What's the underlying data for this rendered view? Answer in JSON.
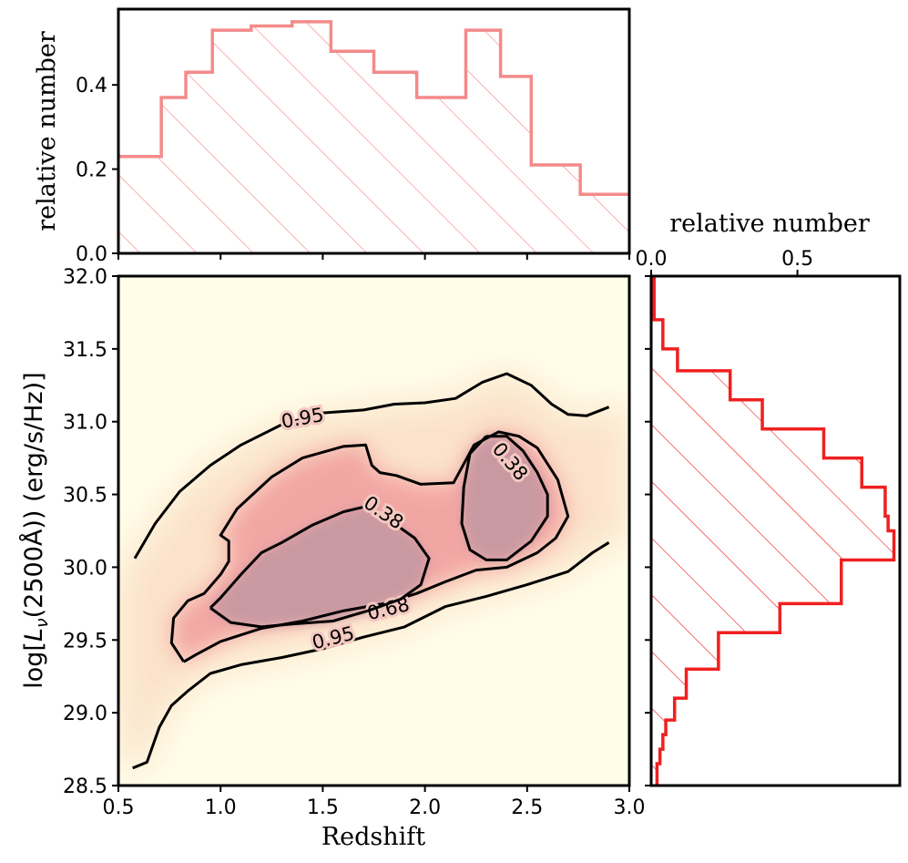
{
  "chart_data": [
    {
      "panel": "top-histogram",
      "type": "bar",
      "xlabel": "",
      "ylabel": "relative number",
      "xlim": [
        0.5,
        3.0
      ],
      "ylim": [
        0.0,
        0.58
      ],
      "yticks": [
        0.0,
        0.2,
        0.4
      ],
      "ytick_labels": [
        "0.0",
        "0.2",
        "0.4"
      ],
      "style": "step, hatched",
      "color": "#f48a8a",
      "bin_edges": [
        0.5,
        0.71,
        0.83,
        0.96,
        1.15,
        1.35,
        1.54,
        1.75,
        1.96,
        2.06,
        2.2,
        2.37,
        2.52,
        2.64,
        2.76,
        3.0
      ],
      "values": [
        0.23,
        0.37,
        0.43,
        0.53,
        0.54,
        0.55,
        0.48,
        0.43,
        0.37,
        0.37,
        0.53,
        0.42,
        0.21,
        0.21,
        0.14
      ]
    },
    {
      "panel": "main-density",
      "type": "heatmap",
      "xlabel": "Redshift",
      "ylabel": "log[L_ν(2500Å)) (erg/s/Hz)]",
      "xlim": [
        0.5,
        3.0
      ],
      "ylim": [
        28.5,
        32.0
      ],
      "xticks": [
        0.5,
        1.0,
        1.5,
        2.0,
        2.5,
        3.0
      ],
      "xtick_labels": [
        "0.5",
        "1.0",
        "1.5",
        "2.0",
        "2.5",
        "3.0"
      ],
      "yticks": [
        28.5,
        29.0,
        29.5,
        30.0,
        30.5,
        31.0,
        31.5,
        32.0
      ],
      "ytick_labels": [
        "28.5",
        "29.0",
        "29.5",
        "30.0",
        "30.5",
        "31.0",
        "31.5",
        "32.0"
      ],
      "background_color": "#fffde8",
      "density_color": "#c999a2",
      "contours": [
        {
          "level": "0.95",
          "points": [
            [
              0.58,
              30.06
            ],
            [
              0.68,
              30.3
            ],
            [
              0.8,
              30.52
            ],
            [
              0.95,
              30.7
            ],
            [
              1.1,
              30.84
            ],
            [
              1.3,
              30.98
            ],
            [
              1.5,
              31.06
            ],
            [
              1.7,
              31.08
            ],
            [
              1.85,
              31.12
            ],
            [
              2.0,
              31.13
            ],
            [
              2.15,
              31.16
            ],
            [
              2.28,
              31.27
            ],
            [
              2.4,
              31.33
            ],
            [
              2.52,
              31.25
            ],
            [
              2.62,
              31.12
            ],
            [
              2.7,
              31.05
            ],
            [
              2.79,
              31.04
            ],
            [
              2.9,
              31.1
            ]
          ],
          "labels": [
            {
              "text": "0.95",
              "x": 1.4,
              "y": 31.03
            }
          ]
        },
        {
          "level": "0.95",
          "points": [
            [
              0.57,
              28.62
            ],
            [
              0.64,
              28.66
            ],
            [
              0.7,
              28.9
            ],
            [
              0.76,
              29.05
            ],
            [
              0.84,
              29.15
            ],
            [
              0.95,
              29.27
            ],
            [
              1.1,
              29.33
            ],
            [
              1.3,
              29.38
            ],
            [
              1.5,
              29.44
            ],
            [
              1.7,
              29.52
            ],
            [
              1.9,
              29.59
            ],
            [
              2.1,
              29.73
            ],
            [
              2.3,
              29.8
            ],
            [
              2.5,
              29.88
            ],
            [
              2.7,
              29.97
            ],
            [
              2.82,
              30.1
            ],
            [
              2.9,
              30.17
            ]
          ],
          "labels": [
            {
              "text": "0.95",
              "x": 1.55,
              "y": 29.52
            }
          ]
        },
        {
          "level": "0.68",
          "points": [
            [
              0.82,
              29.35
            ],
            [
              0.76,
              29.48
            ],
            [
              0.77,
              29.65
            ],
            [
              0.84,
              29.77
            ],
            [
              0.92,
              29.82
            ],
            [
              1.0,
              29.95
            ],
            [
              1.04,
              30.04
            ],
            [
              1.04,
              30.18
            ],
            [
              1.0,
              30.22
            ],
            [
              1.08,
              30.4
            ],
            [
              1.25,
              30.62
            ],
            [
              1.4,
              30.75
            ],
            [
              1.6,
              30.83
            ],
            [
              1.71,
              30.84
            ],
            [
              1.74,
              30.7
            ],
            [
              1.78,
              30.65
            ],
            [
              1.86,
              30.63
            ],
            [
              1.98,
              30.57
            ],
            [
              2.14,
              30.58
            ],
            [
              2.24,
              30.84
            ],
            [
              2.36,
              30.93
            ],
            [
              2.46,
              30.9
            ],
            [
              2.55,
              30.82
            ],
            [
              2.65,
              30.6
            ],
            [
              2.7,
              30.35
            ],
            [
              2.64,
              30.2
            ],
            [
              2.55,
              30.1
            ],
            [
              2.4,
              30.0
            ],
            [
              2.25,
              29.98
            ],
            [
              2.1,
              29.9
            ],
            [
              1.96,
              29.82
            ],
            [
              1.8,
              29.75
            ],
            [
              1.6,
              29.7
            ],
            [
              1.4,
              29.63
            ],
            [
              1.2,
              29.58
            ],
            [
              1.0,
              29.49
            ],
            [
              0.88,
              29.4
            ],
            [
              0.82,
              29.35
            ]
          ],
          "labels": [
            {
              "text": "0.68",
              "x": 1.82,
              "y": 29.72
            }
          ]
        },
        {
          "level": "0.38",
          "points": [
            [
              0.95,
              29.72
            ],
            [
              1.05,
              29.62
            ],
            [
              1.2,
              29.59
            ],
            [
              1.35,
              29.61
            ],
            [
              1.55,
              29.63
            ],
            [
              1.72,
              29.7
            ],
            [
              1.88,
              29.78
            ],
            [
              1.98,
              29.88
            ],
            [
              2.02,
              30.06
            ],
            [
              1.95,
              30.2
            ],
            [
              1.85,
              30.3
            ],
            [
              1.72,
              30.42
            ],
            [
              1.6,
              30.38
            ],
            [
              1.45,
              30.29
            ],
            [
              1.3,
              30.17
            ],
            [
              1.2,
              30.1
            ],
            [
              1.1,
              29.95
            ],
            [
              1.0,
              29.79
            ],
            [
              0.95,
              29.72
            ]
          ],
          "labels": [
            {
              "text": "0.38",
              "x": 1.8,
              "y": 30.38
            }
          ]
        },
        {
          "level": "0.38",
          "points": [
            [
              2.3,
              30.9
            ],
            [
              2.4,
              30.9
            ],
            [
              2.48,
              30.8
            ],
            [
              2.55,
              30.65
            ],
            [
              2.6,
              30.5
            ],
            [
              2.6,
              30.35
            ],
            [
              2.52,
              30.18
            ],
            [
              2.4,
              30.05
            ],
            [
              2.3,
              30.05
            ],
            [
              2.22,
              30.12
            ],
            [
              2.18,
              30.3
            ],
            [
              2.19,
              30.55
            ],
            [
              2.22,
              30.78
            ],
            [
              2.3,
              30.9
            ]
          ],
          "labels": [
            {
              "text": "0.38",
              "x": 2.42,
              "y": 30.73
            }
          ]
        }
      ]
    },
    {
      "panel": "right-histogram",
      "type": "bar",
      "orientation": "horizontal",
      "xlabel": "relative number",
      "xlim": [
        0.0,
        0.85
      ],
      "xticks": [
        0.0,
        0.5
      ],
      "xtick_labels": [
        "0.0",
        "0.5"
      ],
      "ylim": [
        28.5,
        32.0
      ],
      "style": "step, hatched",
      "color": "#ef2020",
      "bin_edges": [
        28.5,
        28.65,
        28.75,
        28.85,
        28.95,
        29.1,
        29.3,
        29.55,
        29.75,
        30.05,
        30.25,
        30.35,
        30.55,
        30.75,
        30.95,
        31.15,
        31.35,
        31.5,
        31.7,
        32.0
      ],
      "values": [
        0.02,
        0.03,
        0.04,
        0.05,
        0.08,
        0.12,
        0.23,
        0.44,
        0.65,
        0.83,
        0.81,
        0.8,
        0.72,
        0.59,
        0.38,
        0.27,
        0.09,
        0.04,
        0.01
      ]
    }
  ]
}
